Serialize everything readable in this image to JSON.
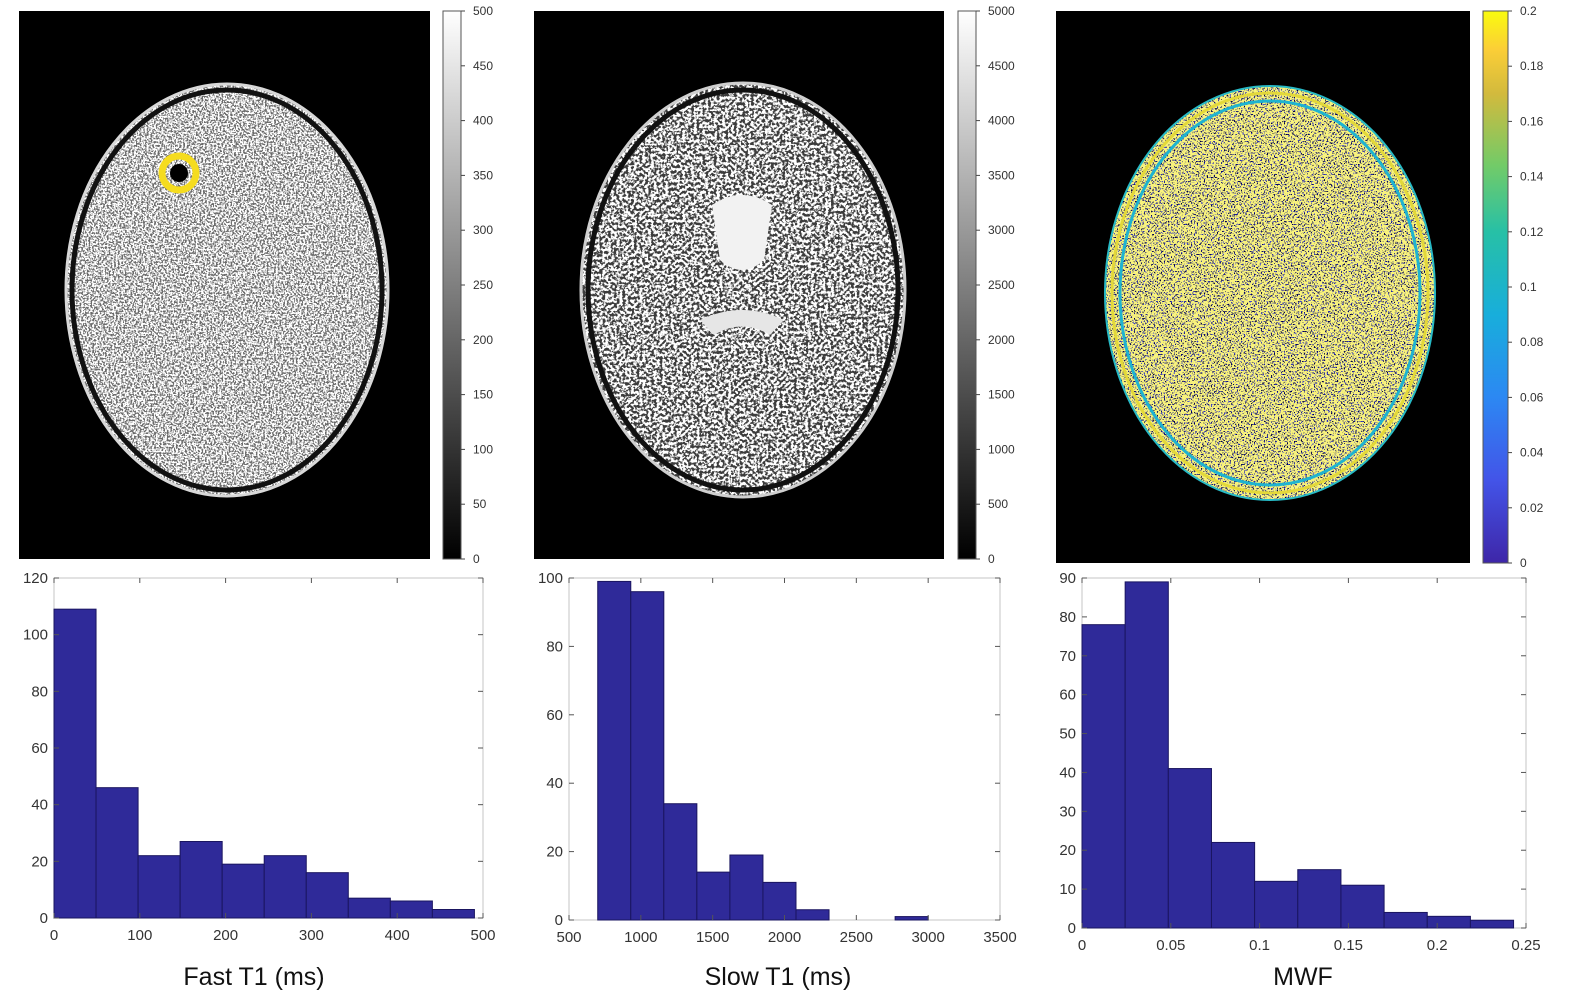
{
  "colors": {
    "bar": "#2f2a99",
    "bar_edge": "#1a1560",
    "ring": "#f5dc1f"
  },
  "maps": [
    {
      "name": "fast-t1-map",
      "colormap": "gray",
      "colorbar_ticks": [
        "0",
        "50",
        "100",
        "150",
        "200",
        "250",
        "300",
        "350",
        "400",
        "450",
        "500"
      ]
    },
    {
      "name": "slow-t1-map",
      "colormap": "gray",
      "colorbar_ticks": [
        "0",
        "500",
        "1000",
        "1500",
        "2000",
        "2500",
        "3000",
        "3500",
        "4000",
        "4500",
        "5000"
      ]
    },
    {
      "name": "mwf-map",
      "colormap": "parula",
      "colorbar_ticks": [
        "0",
        "0.02",
        "0.04",
        "0.06",
        "0.08",
        "0.1",
        "0.12",
        "0.14",
        "0.16",
        "0.18",
        "0.2"
      ]
    }
  ],
  "chart_data": [
    {
      "type": "bar",
      "xlabel": "Fast T1 (ms)",
      "ylabel": "",
      "bin_edges": [
        0,
        49,
        98,
        147,
        196,
        245,
        294,
        343,
        392,
        441,
        490
      ],
      "values": [
        109,
        46,
        22,
        27,
        19,
        22,
        16,
        7,
        6,
        3
      ],
      "xlim": [
        0,
        500
      ],
      "ylim": [
        0,
        120
      ],
      "xticks": [
        "0",
        "100",
        "200",
        "300",
        "400",
        "500"
      ],
      "yticks": [
        "0",
        "20",
        "40",
        "60",
        "80",
        "100",
        "120"
      ]
    },
    {
      "type": "bar",
      "xlabel": "Slow T1 (ms)",
      "ylabel": "",
      "bin_edges": [
        700,
        930,
        1160,
        1390,
        1620,
        1850,
        2080,
        2310,
        2540,
        2770,
        3000
      ],
      "values": [
        99,
        96,
        34,
        14,
        19,
        11,
        3,
        0,
        0,
        1
      ],
      "xlim": [
        500,
        3500
      ],
      "ylim": [
        0,
        100
      ],
      "xticks": [
        "500",
        "1000",
        "1500",
        "2000",
        "2500",
        "3000",
        "3500"
      ],
      "yticks": [
        "0",
        "20",
        "40",
        "60",
        "80",
        "100"
      ]
    },
    {
      "type": "bar",
      "xlabel": "MWF",
      "ylabel": "",
      "bin_edges": [
        0,
        0.0243,
        0.0486,
        0.0729,
        0.0972,
        0.1215,
        0.1458,
        0.1701,
        0.1944,
        0.2187,
        0.243
      ],
      "values": [
        78,
        89,
        41,
        22,
        12,
        15,
        11,
        4,
        3,
        2
      ],
      "xlim": [
        0,
        0.25
      ],
      "ylim": [
        0,
        90
      ],
      "xticks": [
        "0",
        "0.05",
        "0.1",
        "0.15",
        "0.2",
        "0.25"
      ],
      "yticks": [
        "0",
        "10",
        "20",
        "30",
        "40",
        "50",
        "60",
        "70",
        "80",
        "90"
      ]
    }
  ]
}
